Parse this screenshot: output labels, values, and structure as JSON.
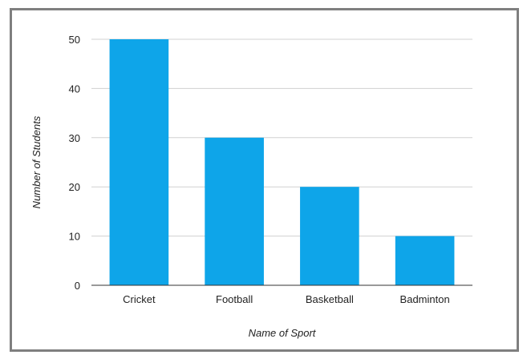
{
  "chart_data": {
    "type": "bar",
    "title": "",
    "categories": [
      "Cricket",
      "Football",
      "Basketball",
      "Badminton"
    ],
    "values": [
      50,
      30,
      20,
      10
    ],
    "xlabel": "Name of Sport",
    "ylabel": "Number of Students",
    "ylim": [
      0,
      50
    ],
    "yticks": [
      0,
      10,
      20,
      30,
      40,
      50
    ],
    "grid": true,
    "legend": "none",
    "bar_color": "#0ea5e9"
  }
}
